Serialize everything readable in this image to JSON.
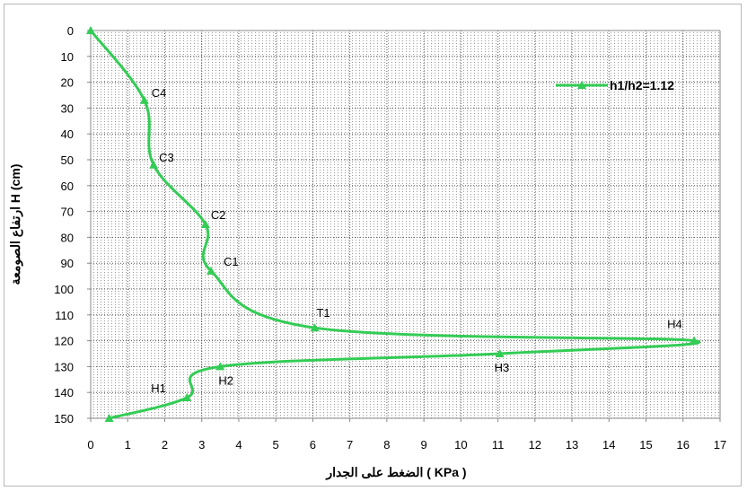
{
  "chart_data": {
    "type": "line",
    "title": "",
    "xlabel": "الضغط على الجدار ( KPa )",
    "ylabel": "ارتفاع الصومعة H (cm)",
    "xlim": [
      0,
      17
    ],
    "ylim": [
      0,
      150
    ],
    "y_inverted": true,
    "x_ticks": [
      0,
      1,
      2,
      3,
      4,
      5,
      6,
      7,
      8,
      9,
      10,
      11,
      12,
      13,
      14,
      15,
      16,
      17
    ],
    "y_ticks": [
      0,
      10,
      20,
      30,
      40,
      50,
      60,
      70,
      80,
      90,
      100,
      110,
      120,
      130,
      140,
      150
    ],
    "grid": true,
    "legend_position": "top-right",
    "series": [
      {
        "name": "h1/h2=1.12",
        "color": "#33cc55",
        "marker": "triangle",
        "x": [
          0,
          1.45,
          1.7,
          3.1,
          3.25,
          6.05,
          16.3,
          11.05,
          3.5,
          2.6,
          0.5
        ],
        "y": [
          0,
          27,
          52,
          75,
          93,
          115,
          120,
          125,
          130,
          142,
          150
        ]
      }
    ],
    "annotations": [
      {
        "text": "C4",
        "x": 1.45,
        "y": 27
      },
      {
        "text": "C3",
        "x": 1.7,
        "y": 52
      },
      {
        "text": "C2",
        "x": 3.1,
        "y": 75
      },
      {
        "text": "C1",
        "x": 3.25,
        "y": 93
      },
      {
        "text": "T1",
        "x": 6.05,
        "y": 115
      },
      {
        "text": "H4",
        "x": 16.3,
        "y": 120
      },
      {
        "text": "H3",
        "x": 11.05,
        "y": 125
      },
      {
        "text": "H2",
        "x": 3.5,
        "y": 130
      },
      {
        "text": "H1",
        "x": 2.6,
        "y": 142
      }
    ]
  }
}
